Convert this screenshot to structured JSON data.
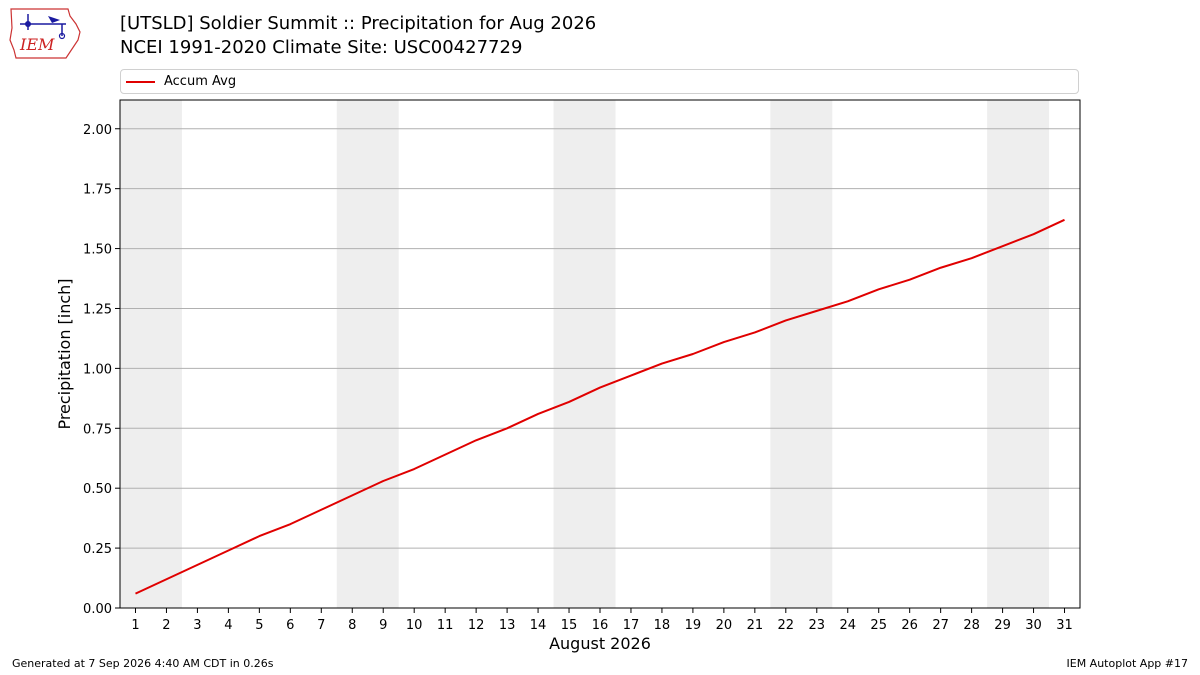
{
  "header": {
    "logo_text": "IEM",
    "title_line1": "[UTSLD] Soldier Summit  :: Precipitation for Aug 2026",
    "title_line2": "NCEI 1991-2020 Climate Site: USC00427729"
  },
  "footer": {
    "left": "Generated at 7 Sep 2026 4:40 AM CDT in 0.26s",
    "right": "IEM Autoplot App #17"
  },
  "colors": {
    "series": "#e00000",
    "weekend_band": "#eeeeee",
    "grid": "#b0b0b0"
  },
  "chart_data": {
    "type": "line",
    "title": "[UTSLD] Soldier Summit  :: Precipitation for Aug 2026",
    "subtitle": "NCEI 1991-2020 Climate Site: USC00427729",
    "xlabel": "August 2026",
    "ylabel": "Precipitation [inch]",
    "x": [
      1,
      2,
      3,
      4,
      5,
      6,
      7,
      8,
      9,
      10,
      11,
      12,
      13,
      14,
      15,
      16,
      17,
      18,
      19,
      20,
      21,
      22,
      23,
      24,
      25,
      26,
      27,
      28,
      29,
      30,
      31
    ],
    "xlim": [
      0.5,
      31.5
    ],
    "ylim": [
      0,
      2.12
    ],
    "yticks": [
      0.0,
      0.25,
      0.5,
      0.75,
      1.0,
      1.25,
      1.5,
      1.75,
      2.0
    ],
    "ytick_labels": [
      "0.00",
      "0.25",
      "0.50",
      "0.75",
      "1.00",
      "1.25",
      "1.50",
      "1.75",
      "2.00"
    ],
    "xtick_labels": [
      "1",
      "2",
      "3",
      "4",
      "5",
      "6",
      "7",
      "8",
      "9",
      "10",
      "11",
      "12",
      "13",
      "14",
      "15",
      "16",
      "17",
      "18",
      "19",
      "20",
      "21",
      "22",
      "23",
      "24",
      "25",
      "26",
      "27",
      "28",
      "29",
      "30",
      "31"
    ],
    "grid": "horizontal",
    "legend": "top",
    "shaded_days": [
      [
        1,
        2
      ],
      [
        8,
        9
      ],
      [
        15,
        16
      ],
      [
        22,
        23
      ],
      [
        29,
        30
      ]
    ],
    "series": [
      {
        "name": "Accum Avg",
        "values": [
          0.06,
          0.12,
          0.18,
          0.24,
          0.3,
          0.35,
          0.41,
          0.47,
          0.53,
          0.58,
          0.64,
          0.7,
          0.75,
          0.81,
          0.86,
          0.92,
          0.97,
          1.02,
          1.06,
          1.11,
          1.15,
          1.2,
          1.24,
          1.28,
          1.33,
          1.37,
          1.42,
          1.46,
          1.51,
          1.56,
          1.62
        ]
      }
    ]
  }
}
